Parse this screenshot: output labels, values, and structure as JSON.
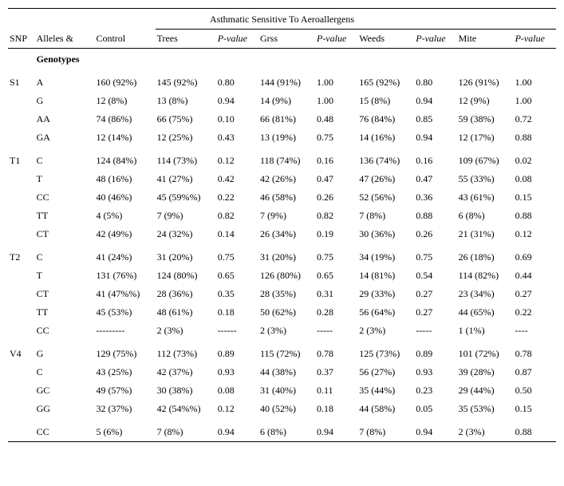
{
  "title": "Asthmatic Sensitive To Aeroallergens",
  "cols": {
    "snp": "SNP",
    "allele": "Alleles &",
    "allele2": "Genotypes",
    "ctrl": "Control",
    "trees": "Trees",
    "grss": "Grss",
    "weeds": "Weeds",
    "mite": "Mite",
    "pval": "P-value"
  },
  "rows": [
    {
      "snp": "S1",
      "a": "A",
      "ctrl": "160 (92%)",
      "trees": "145 (92%)",
      "tp": "0.80",
      "grss": "144 (91%)",
      "gp": "1.00",
      "weeds": "165 (92%)",
      "wp": "0.80",
      "mite": "126 (91%)",
      "mp": "1.00",
      "sec": true
    },
    {
      "snp": "",
      "a": "G",
      "ctrl": "12 (8%)",
      "trees": "13 (8%)",
      "tp": "0.94",
      "grss": "14 (9%)",
      "gp": "1.00",
      "weeds": "15 (8%)",
      "wp": "0.94",
      "mite": "12 (9%)",
      "mp": "1.00"
    },
    {
      "snp": "",
      "a": "AA",
      "ctrl": "74 (86%)",
      "trees": "66 (75%)",
      "tp": "0.10",
      "grss": "66 (81%)",
      "gp": "0.48",
      "weeds": "76 (84%)",
      "wp": "0.85",
      "mite": "59 (38%)",
      "mp": "0.72"
    },
    {
      "snp": "",
      "a": "GA",
      "ctrl": "12 (14%)",
      "trees": "12 (25%)",
      "tp": "0.43",
      "grss": "13 (19%)",
      "gp": "0.75",
      "weeds": "14 (16%)",
      "wp": "0.94",
      "mite": "12 (17%)",
      "mp": "0.88"
    },
    {
      "snp": "T1",
      "a": "C",
      "ctrl": "124 (84%)",
      "trees": "114 (73%)",
      "tp": "0.12",
      "grss": "118 (74%)",
      "gp": "0.16",
      "weeds": "136 (74%)",
      "wp": "0.16",
      "mite": "109 (67%)",
      "mp": "0.02",
      "sec": true
    },
    {
      "snp": "",
      "a": "T",
      "ctrl": "48 (16%)",
      "trees": "41 (27%)",
      "tp": "0.42",
      "grss": "42 (26%)",
      "gp": "0.47",
      "weeds": "47 (26%)",
      "wp": "0.47",
      "mite": "55 (33%)",
      "mp": "0.08"
    },
    {
      "snp": "",
      "a": "CC",
      "ctrl": "40 (46%)",
      "trees": "45 (59%%)",
      "tp": "0.22",
      "grss": "46 (58%)",
      "gp": "0.26",
      "weeds": "52 (56%)",
      "wp": "0.36",
      "mite": "43 (61%)",
      "mp": "0.15"
    },
    {
      "snp": "",
      "a": "TT",
      "ctrl": "4 (5%)",
      "trees": "7 (9%)",
      "tp": "0.82",
      "grss": "7 (9%)",
      "gp": "0.82",
      "weeds": "7 (8%)",
      "wp": "0.88",
      "mite": "6 (8%)",
      "mp": "0.88"
    },
    {
      "snp": "",
      "a": "CT",
      "ctrl": "42 (49%)",
      "trees": "24 (32%)",
      "tp": "0.14",
      "grss": "26 (34%)",
      "gp": "0.19",
      "weeds": "30 (36%)",
      "wp": "0.26",
      "mite": "21 (31%)",
      "mp": "0.12"
    },
    {
      "snp": "T2",
      "a": "C",
      "ctrl": "41 (24%)",
      "trees": "31 (20%)",
      "tp": "0.75",
      "grss": "31 (20%)",
      "gp": "0.75",
      "weeds": "34 (19%)",
      "wp": "0.75",
      "mite": "26 (18%)",
      "mp": "0.69",
      "sec": true
    },
    {
      "snp": "",
      "a": "T",
      "ctrl": "131 (76%)",
      "trees": "124 (80%)",
      "tp": "0.65",
      "grss": "126 (80%)",
      "gp": "0.65",
      "weeds": "14 (81%)",
      "wp": "0.54",
      "mite": "114 (82%)",
      "mp": "0.44"
    },
    {
      "snp": "",
      "a": "CT",
      "ctrl": "41 (47%%)",
      "trees": "28 (36%)",
      "tp": "0.35",
      "grss": "28 (35%)",
      "gp": "0.31",
      "weeds": "29 (33%)",
      "wp": "0.27",
      "mite": "23 (34%)",
      "mp": "0.27"
    },
    {
      "snp": "",
      "a": "TT",
      "ctrl": "45 (53%)",
      "trees": "48 (61%)",
      "tp": "0.18",
      "grss": "50 (62%)",
      "gp": "0.28",
      "weeds": "56 (64%)",
      "wp": "0.27",
      "mite": "44 (65%)",
      "mp": "0.22"
    },
    {
      "snp": "",
      "a": "CC",
      "ctrl": "---------",
      "trees": "2 (3%)",
      "tp": "------",
      "grss": "2 (3%)",
      "gp": "-----",
      "weeds": "2 (3%)",
      "wp": "-----",
      "mite": "1 (1%)",
      "mp": "----"
    },
    {
      "snp": "V4",
      "a": "G",
      "ctrl": "129 (75%)",
      "trees": "112 (73%)",
      "tp": "0.89",
      "grss": "115 (72%)",
      "gp": "0.78",
      "weeds": "125 (73%)",
      "wp": "0.89",
      "mite": "101 (72%)",
      "mp": "0.78",
      "sec": true
    },
    {
      "snp": "",
      "a": "C",
      "ctrl": "43 (25%)",
      "trees": "42 (37%)",
      "tp": "0.93",
      "grss": "44 (38%)",
      "gp": "0.37",
      "weeds": "56 (27%)",
      "wp": "0.93",
      "mite": "39 (28%)",
      "mp": "0.87"
    },
    {
      "snp": "",
      "a": "GC",
      "ctrl": "49 (57%)",
      "trees": "30 (38%)",
      "tp": "0.08",
      "grss": "31 (40%)",
      "gp": "0.11",
      "weeds": "35 (44%)",
      "wp": "0.23",
      "mite": "29 (44%)",
      "mp": "0.50"
    },
    {
      "snp": "",
      "a": "GG",
      "ctrl": "32 (37%)",
      "trees": "42 (54%%)",
      "tp": "0.12",
      "grss": "40 (52%)",
      "gp": "0.18",
      "weeds": "44 (58%)",
      "wp": "0.05",
      "mite": "35 (53%)",
      "mp": "0.15"
    },
    {
      "snp": "",
      "a": "CC",
      "ctrl": "5 (6%)",
      "trees": "7 (8%)",
      "tp": "0.94",
      "grss": "6 (8%)",
      "gp": "0.94",
      "weeds": "7 (8%)",
      "wp": "0.94",
      "mite": "2 (3%)",
      "mp": "0.88",
      "last": true
    }
  ]
}
